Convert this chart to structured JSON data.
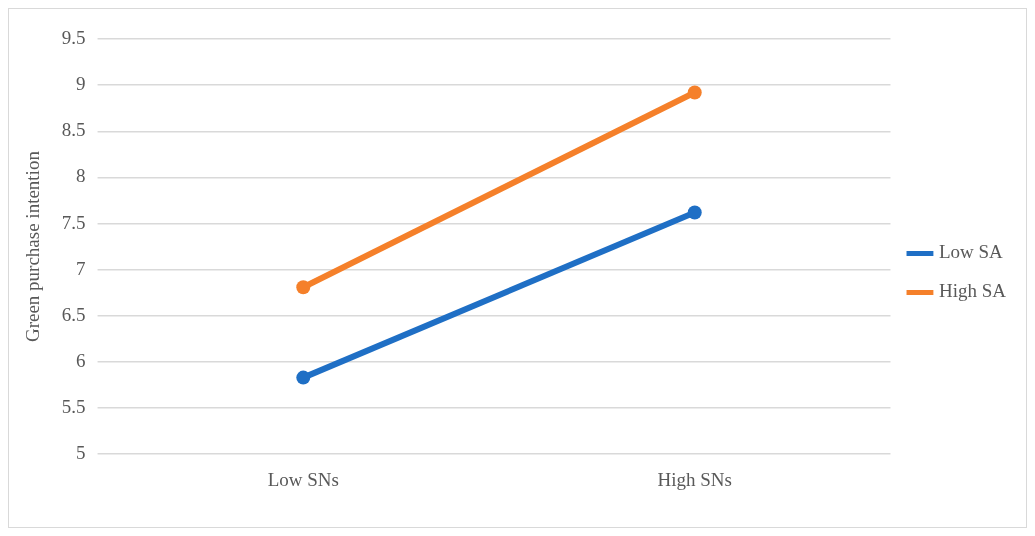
{
  "chart_data": {
    "type": "line",
    "ylabel": "Green purchase intention",
    "categories": [
      "Low SNs",
      "High SNs"
    ],
    "series": [
      {
        "name": "Low SA",
        "color": "#1f6fc5",
        "values": [
          5.83,
          7.62
        ]
      },
      {
        "name": "High SA",
        "color": "#f5802a",
        "values": [
          6.81,
          8.92
        ]
      }
    ],
    "ylim": [
      5,
      9.5
    ],
    "yticks": [
      5,
      5.5,
      6,
      6.5,
      7,
      7.5,
      8,
      8.5,
      9,
      9.5
    ],
    "grid": "y",
    "legend": "right",
    "marker": "circle",
    "line_style": "solid"
  }
}
